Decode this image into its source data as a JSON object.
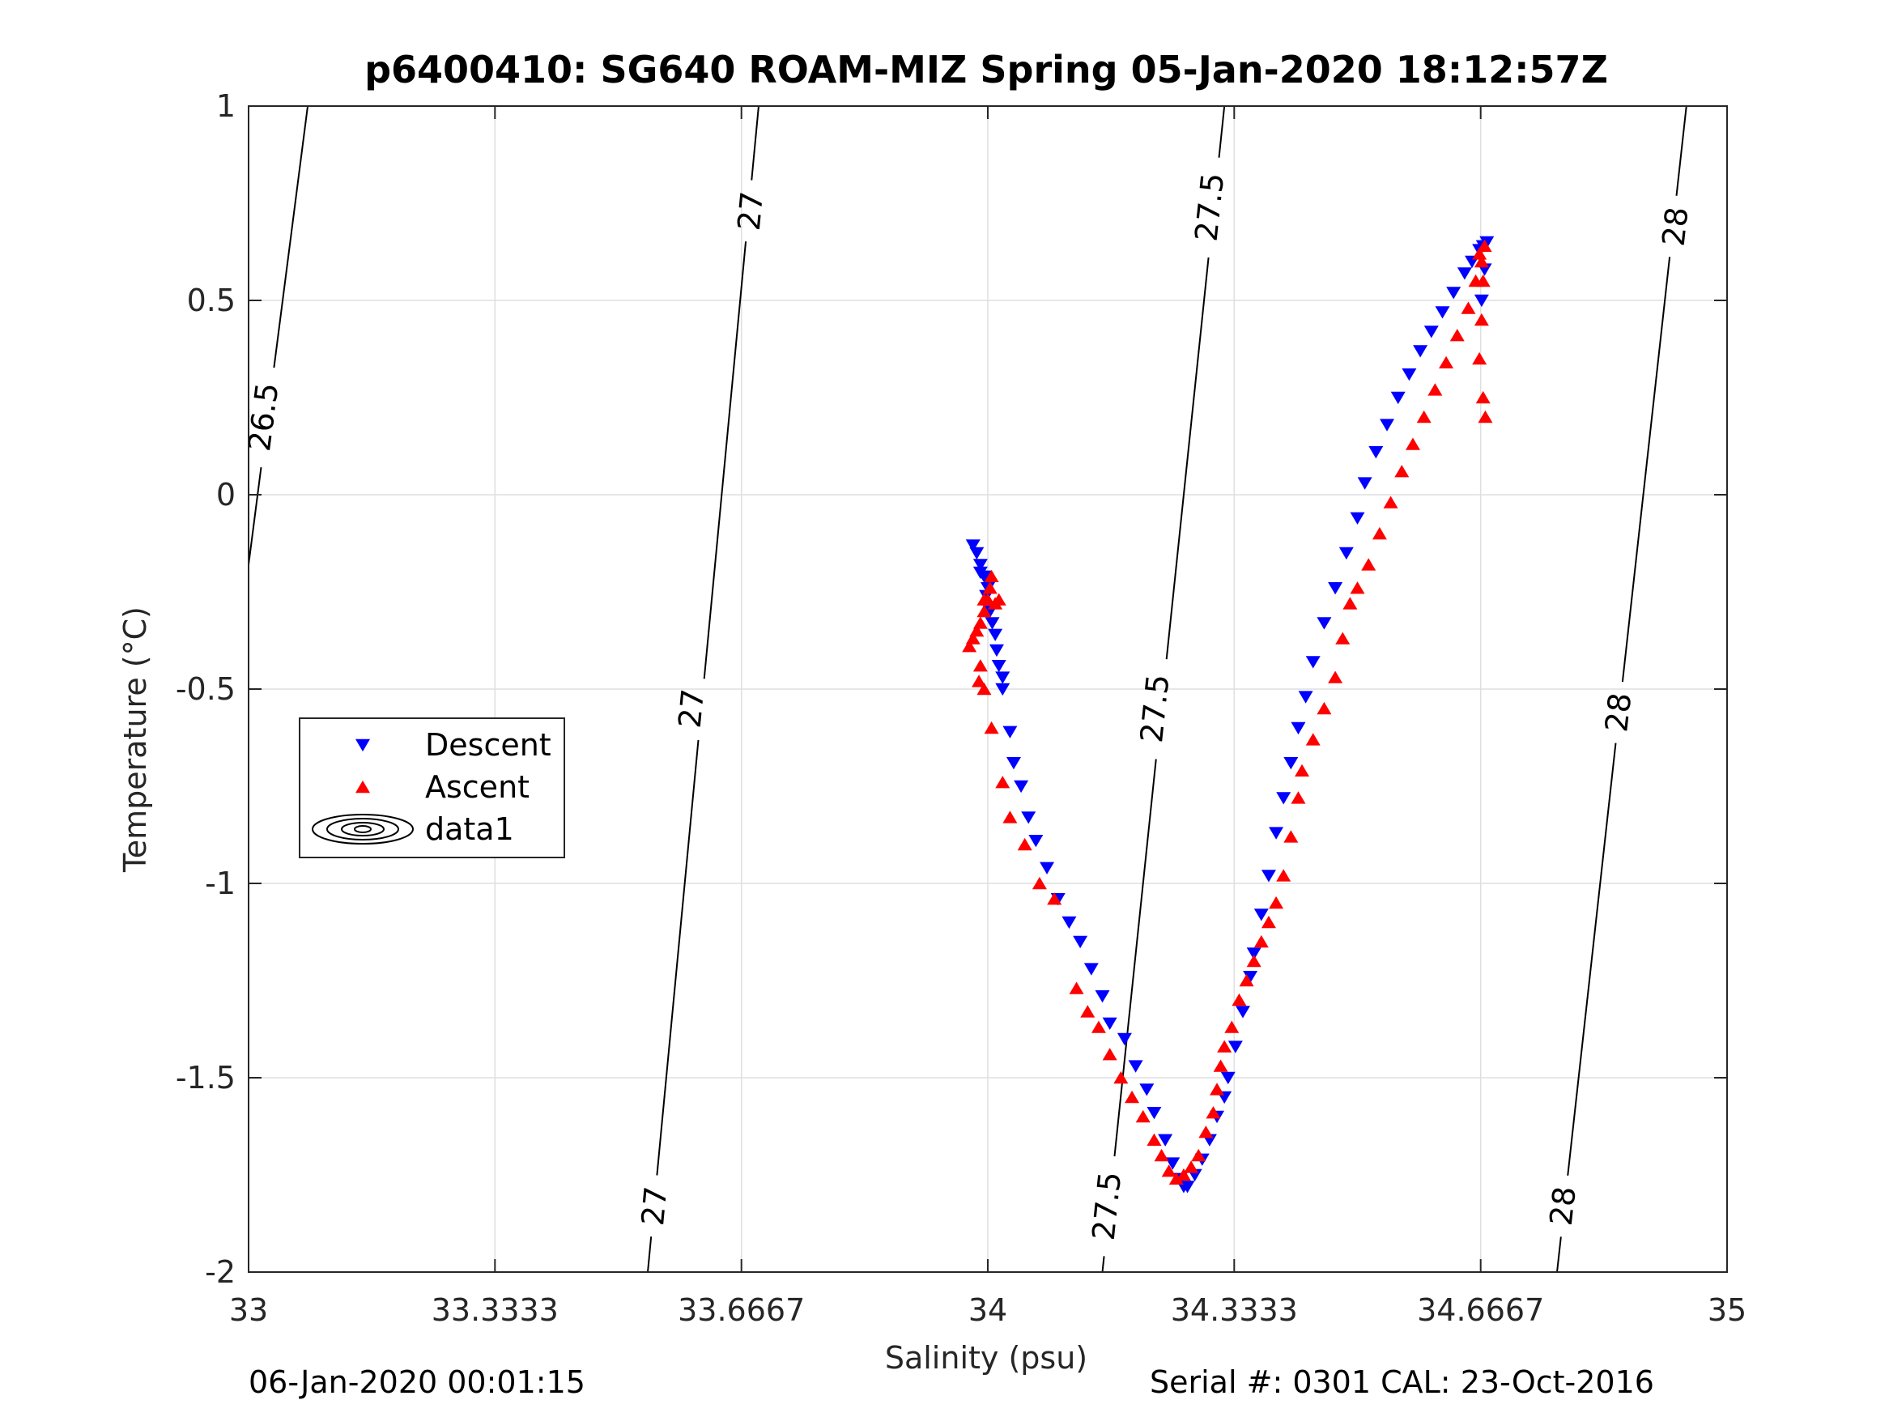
{
  "footer": {
    "left": "06-Jan-2020 00:01:15",
    "right": "Serial #: 0301  CAL: 23-Oct-2016"
  },
  "chart_data": {
    "type": "scatter",
    "title": "p6400410: SG640 ROAM-MIZ Spring 05-Jan-2020 18:12:57Z",
    "xlabel": "Salinity (psu)",
    "ylabel": "Temperature (°C)",
    "xlim": [
      33,
      35
    ],
    "ylim": [
      -2,
      1
    ],
    "x_ticks": [
      33,
      33.3333,
      33.6667,
      34,
      34.3333,
      34.6667,
      35
    ],
    "x_tick_labels": [
      "33",
      "33.3333",
      "33.6667",
      "34",
      "34.3333",
      "34.6667",
      "35"
    ],
    "y_ticks": [
      1,
      0.5,
      0,
      -0.5,
      -1,
      -1.5,
      -2
    ],
    "y_tick_labels": [
      "1",
      "0.5",
      "0",
      "-0.5",
      "-1",
      "-1.5",
      "-2"
    ],
    "grid": true,
    "legend_position": "left-middle",
    "legend": [
      {
        "label": "Descent",
        "marker": "triangle-down",
        "color": "#0000ff"
      },
      {
        "label": "Ascent",
        "marker": "triangle-up",
        "color": "#ff0000"
      },
      {
        "label": "data1",
        "marker": "contour",
        "color": "#000000"
      }
    ],
    "density_contours": [
      {
        "level": "26.5",
        "points": [
          [
            33.0,
            -0.18
          ],
          [
            33.08,
            1.0
          ]
        ],
        "labels": [
          {
            "text": "26.5",
            "x": 33.02,
            "y": 0.2
          }
        ]
      },
      {
        "level": "27",
        "points": [
          [
            33.54,
            -2.0
          ],
          [
            33.69,
            1.0
          ]
        ],
        "labels": [
          {
            "text": "27",
            "x": 33.549,
            "y": -1.83
          },
          {
            "text": "27",
            "x": 33.599,
            "y": -0.55
          },
          {
            "text": "27",
            "x": 33.679,
            "y": 0.73
          }
        ]
      },
      {
        "level": "27.5",
        "points": [
          [
            34.155,
            -2.0
          ],
          [
            34.32,
            1.0
          ]
        ],
        "labels": [
          {
            "text": "27.5",
            "x": 34.161,
            "y": -1.83
          },
          {
            "text": "27.5",
            "x": 34.226,
            "y": -0.55
          },
          {
            "text": "27.5",
            "x": 34.3,
            "y": 0.74
          }
        ]
      },
      {
        "level": "28",
        "points": [
          [
            34.77,
            -2.0
          ],
          [
            34.945,
            1.0
          ]
        ],
        "labels": [
          {
            "text": "28",
            "x": 34.778,
            "y": -1.83
          },
          {
            "text": "28",
            "x": 34.853,
            "y": -0.56
          },
          {
            "text": "28",
            "x": 34.93,
            "y": 0.69
          }
        ]
      }
    ],
    "series": [
      {
        "name": "Descent",
        "color": "#0000ff",
        "marker": "triangle-down",
        "x": [
          33.98,
          33.985,
          33.99,
          33.99,
          33.995,
          34.0,
          33.998,
          34.003,
          34.006,
          34.01,
          34.012,
          34.015,
          34.02,
          34.02,
          34.03,
          34.035,
          34.045,
          34.055,
          34.065,
          34.08,
          34.095,
          34.11,
          34.125,
          34.14,
          34.155,
          34.165,
          34.185,
          34.2,
          34.215,
          34.225,
          34.24,
          34.25,
          34.26,
          34.265,
          34.27,
          34.28,
          34.29,
          34.3,
          34.31,
          34.32,
          34.325,
          34.335,
          34.345,
          34.355,
          34.36,
          34.37,
          34.38,
          34.39,
          34.4,
          34.41,
          34.42,
          34.43,
          34.44,
          34.455,
          34.47,
          34.485,
          34.5,
          34.51,
          34.525,
          34.54,
          34.555,
          34.57,
          34.585,
          34.6,
          34.615,
          34.63,
          34.645,
          34.655,
          34.665,
          34.67,
          34.675,
          34.672,
          34.668
        ],
        "y": [
          -0.13,
          -0.15,
          -0.18,
          -0.2,
          -0.21,
          -0.24,
          -0.26,
          -0.3,
          -0.33,
          -0.36,
          -0.4,
          -0.44,
          -0.47,
          -0.5,
          -0.61,
          -0.69,
          -0.75,
          -0.83,
          -0.89,
          -0.96,
          -1.04,
          -1.1,
          -1.15,
          -1.22,
          -1.29,
          -1.36,
          -1.4,
          -1.47,
          -1.53,
          -1.59,
          -1.66,
          -1.72,
          -1.76,
          -1.78,
          -1.78,
          -1.75,
          -1.71,
          -1.66,
          -1.6,
          -1.55,
          -1.5,
          -1.42,
          -1.33,
          -1.24,
          -1.18,
          -1.08,
          -0.98,
          -0.87,
          -0.78,
          -0.69,
          -0.6,
          -0.52,
          -0.43,
          -0.33,
          -0.24,
          -0.15,
          -0.06,
          0.03,
          0.11,
          0.18,
          0.25,
          0.31,
          0.37,
          0.42,
          0.47,
          0.52,
          0.57,
          0.6,
          0.63,
          0.64,
          0.65,
          0.58,
          0.5
        ]
      },
      {
        "name": "Ascent",
        "color": "#ff0000",
        "marker": "triangle-up",
        "x": [
          33.975,
          33.98,
          33.985,
          33.99,
          33.995,
          34.0,
          34.003,
          34.005,
          33.995,
          34.01,
          34.015,
          33.99,
          33.988,
          33.995,
          34.005,
          34.02,
          34.03,
          34.05,
          34.07,
          34.09,
          34.12,
          34.135,
          34.15,
          34.165,
          34.18,
          34.195,
          34.21,
          34.225,
          34.235,
          34.245,
          34.255,
          34.265,
          34.275,
          34.285,
          34.295,
          34.305,
          34.31,
          34.315,
          34.32,
          34.33,
          34.34,
          34.35,
          34.36,
          34.37,
          34.38,
          34.39,
          34.4,
          34.41,
          34.42,
          34.425,
          34.44,
          34.455,
          34.47,
          34.48,
          34.49,
          34.5,
          34.515,
          34.53,
          34.545,
          34.56,
          34.575,
          34.59,
          34.605,
          34.62,
          34.635,
          34.65,
          34.66,
          34.668,
          34.672,
          34.665,
          34.67,
          34.668,
          34.665,
          34.67,
          34.673
        ],
        "y": [
          -0.39,
          -0.37,
          -0.35,
          -0.33,
          -0.3,
          -0.27,
          -0.24,
          -0.21,
          -0.27,
          -0.28,
          -0.27,
          -0.44,
          -0.48,
          -0.5,
          -0.6,
          -0.74,
          -0.83,
          -0.9,
          -1.0,
          -1.04,
          -1.27,
          -1.33,
          -1.37,
          -1.44,
          -1.5,
          -1.55,
          -1.6,
          -1.66,
          -1.7,
          -1.74,
          -1.76,
          -1.75,
          -1.73,
          -1.7,
          -1.64,
          -1.59,
          -1.53,
          -1.47,
          -1.42,
          -1.37,
          -1.3,
          -1.25,
          -1.2,
          -1.15,
          -1.1,
          -1.05,
          -0.98,
          -0.88,
          -0.78,
          -0.71,
          -0.63,
          -0.55,
          -0.47,
          -0.37,
          -0.28,
          -0.24,
          -0.18,
          -0.1,
          -0.02,
          0.06,
          0.13,
          0.2,
          0.27,
          0.34,
          0.41,
          0.48,
          0.55,
          0.6,
          0.64,
          0.62,
          0.55,
          0.45,
          0.35,
          0.25,
          0.2
        ]
      }
    ]
  }
}
